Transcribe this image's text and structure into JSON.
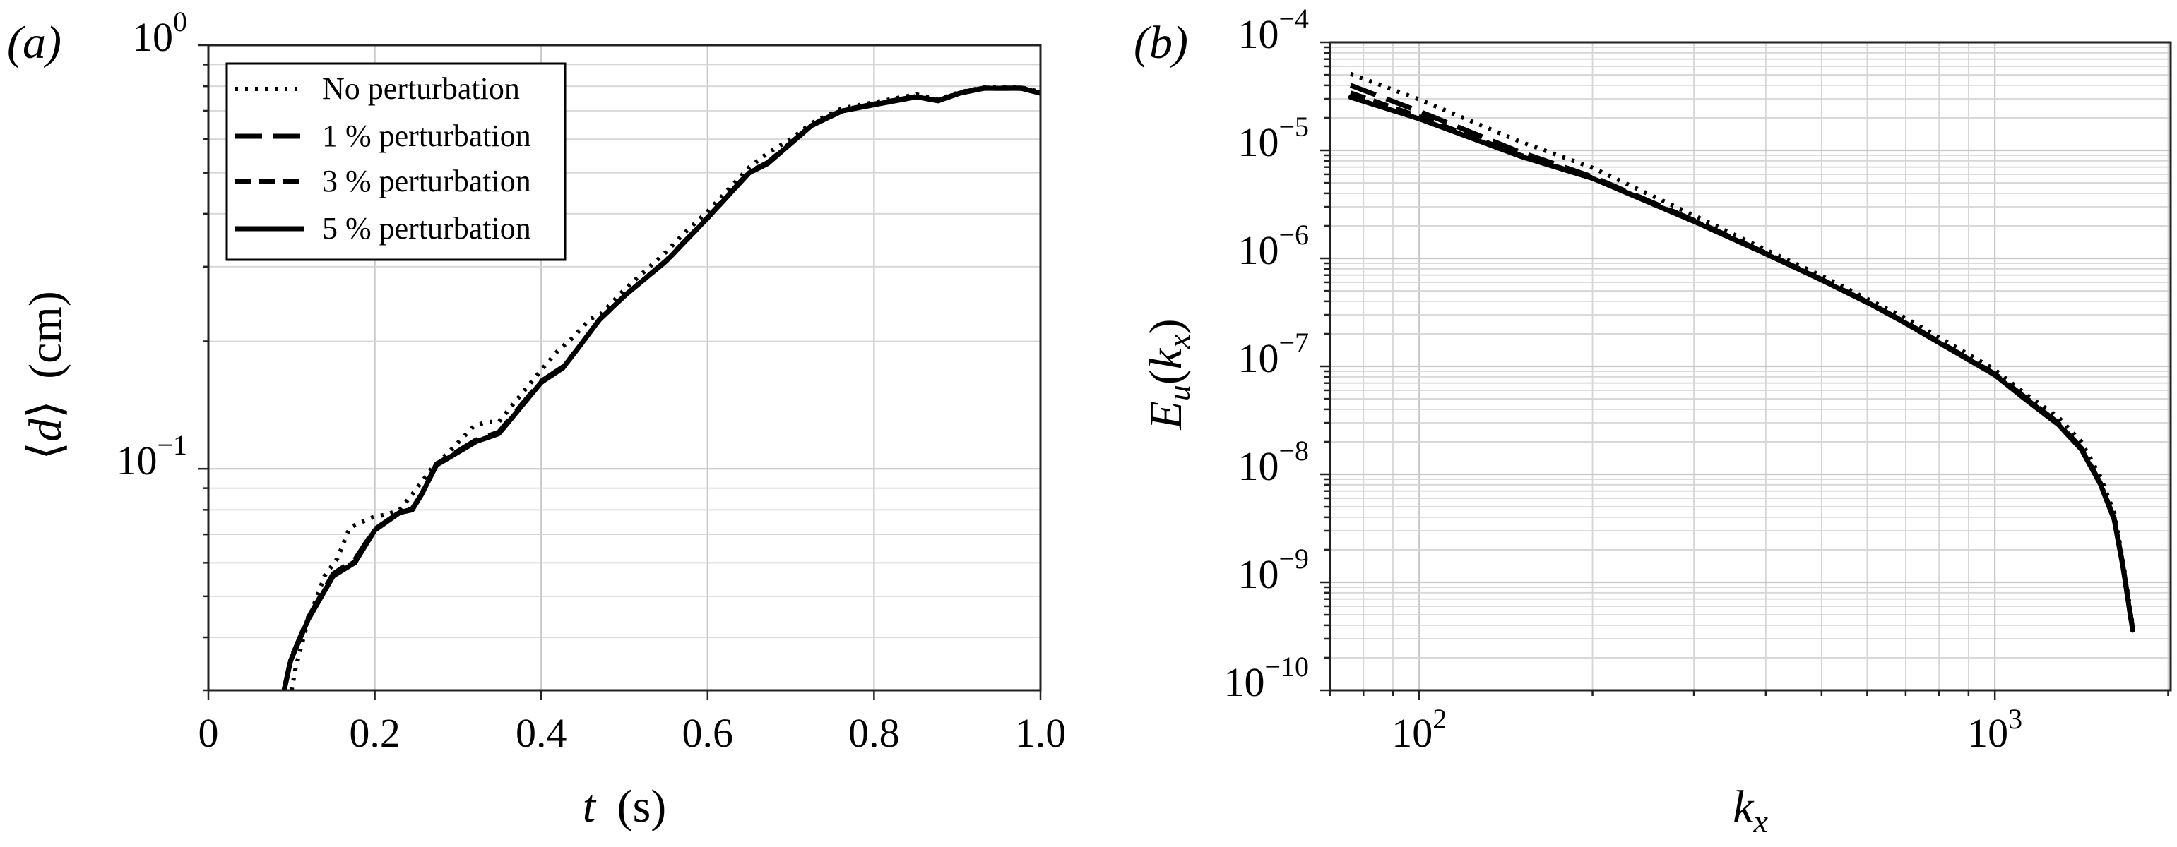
{
  "figure": {
    "panels": [
      "(a)",
      "(b)"
    ]
  },
  "chart_data": [
    {
      "id": "a",
      "type": "line",
      "panel_label": "(a)",
      "title": "",
      "xlabel": "t (s)",
      "xlabel_var": "t",
      "xlabel_unit": "(s)",
      "ylabel": "⟨d⟩ (cm)",
      "ylabel_var": "d",
      "ylabel_unit": "(cm)",
      "xscale": "linear",
      "yscale": "log",
      "xlim": [
        0,
        1.0
      ],
      "ylim": [
        0.03,
        1.0
      ],
      "xticks": [
        0,
        0.2,
        0.4,
        0.6,
        0.8,
        1.0
      ],
      "xtick_labels": [
        "0",
        "0.2",
        "0.4",
        "0.6",
        "0.8",
        "1.0"
      ],
      "yticks": [
        0.1,
        1.0
      ],
      "ytick_labels": [
        {
          "base": "10",
          "exp": "−1"
        },
        {
          "base": "10",
          "exp": "0"
        }
      ],
      "grid": true,
      "legend": {
        "position": "upper left",
        "entries": [
          "No perturbation",
          "1 % perturbation",
          "3 % perturbation",
          "5 % perturbation"
        ]
      },
      "series": [
        {
          "name": "No perturbation",
          "style": "dotted",
          "x": [
            0.1,
            0.105,
            0.12,
            0.14,
            0.155,
            0.17,
            0.185,
            0.199,
            0.215,
            0.23,
            0.245,
            0.256,
            0.27,
            0.29,
            0.319,
            0.334,
            0.349,
            0.37,
            0.4,
            0.42,
            0.438,
            0.459,
            0.472,
            0.5,
            0.55,
            0.572,
            0.6,
            0.65,
            0.672,
            0.7,
            0.725,
            0.762,
            0.803,
            0.851,
            0.877,
            0.903,
            0.932,
            0.977,
            1.0
          ],
          "y": [
            0.03,
            0.034,
            0.044,
            0.056,
            0.0614,
            0.0727,
            0.075,
            0.077,
            0.078,
            0.08,
            0.087,
            0.093,
            0.101,
            0.11,
            0.126,
            0.129,
            0.129,
            0.145,
            0.171,
            0.19,
            0.204,
            0.226,
            0.232,
            0.265,
            0.325,
            0.36,
            0.405,
            0.515,
            0.556,
            0.6,
            0.655,
            0.71,
            0.735,
            0.765,
            0.745,
            0.775,
            0.795,
            0.795,
            0.775
          ]
        },
        {
          "name": "1 % perturbation",
          "style": "dashed-long",
          "x": [
            0.091,
            0.099,
            0.12,
            0.15,
            0.176,
            0.2,
            0.23,
            0.245,
            0.256,
            0.274,
            0.322,
            0.349,
            0.4,
            0.426,
            0.442,
            0.47,
            0.502,
            0.55,
            0.599,
            0.65,
            0.672,
            0.725,
            0.762,
            0.803,
            0.851,
            0.877,
            0.903,
            0.932,
            0.977,
            1.0
          ],
          "y": [
            0.03,
            0.0355,
            0.0445,
            0.0565,
            0.061,
            0.072,
            0.079,
            0.0805,
            0.087,
            0.1025,
            0.117,
            0.122,
            0.161,
            0.174,
            0.19,
            0.225,
            0.258,
            0.31,
            0.39,
            0.502,
            0.528,
            0.648,
            0.702,
            0.728,
            0.757,
            0.74,
            0.772,
            0.792,
            0.792,
            0.772
          ]
        },
        {
          "name": "3 % perturbation",
          "style": "dashed-short",
          "x": [
            0.091,
            0.099,
            0.12,
            0.15,
            0.176,
            0.2,
            0.23,
            0.245,
            0.256,
            0.274,
            0.322,
            0.349,
            0.4,
            0.426,
            0.442,
            0.47,
            0.502,
            0.55,
            0.599,
            0.65,
            0.672,
            0.725,
            0.762,
            0.803,
            0.851,
            0.877,
            0.903,
            0.932,
            0.977,
            1.0
          ],
          "y": [
            0.03,
            0.0353,
            0.0442,
            0.056,
            0.0603,
            0.0718,
            0.0789,
            0.0802,
            0.0869,
            0.102,
            0.116,
            0.121,
            0.16,
            0.173,
            0.19,
            0.225,
            0.258,
            0.309,
            0.389,
            0.5,
            0.526,
            0.646,
            0.7,
            0.726,
            0.756,
            0.739,
            0.77,
            0.791,
            0.791,
            0.771
          ]
        },
        {
          "name": "5 % perturbation",
          "style": "solid",
          "x": [
            0.091,
            0.099,
            0.12,
            0.15,
            0.176,
            0.2,
            0.23,
            0.245,
            0.256,
            0.274,
            0.322,
            0.349,
            0.4,
            0.426,
            0.442,
            0.47,
            0.502,
            0.55,
            0.599,
            0.65,
            0.672,
            0.725,
            0.762,
            0.803,
            0.851,
            0.877,
            0.903,
            0.932,
            0.977,
            1.0
          ],
          "y": [
            0.03,
            0.0353,
            0.0441,
            0.0558,
            0.06,
            0.0716,
            0.0788,
            0.08,
            0.0868,
            0.102,
            0.116,
            0.121,
            0.16,
            0.173,
            0.19,
            0.225,
            0.258,
            0.309,
            0.389,
            0.5,
            0.525,
            0.646,
            0.7,
            0.725,
            0.755,
            0.739,
            0.77,
            0.791,
            0.791,
            0.77
          ]
        }
      ]
    },
    {
      "id": "b",
      "type": "line",
      "panel_label": "(b)",
      "title": "",
      "xlabel": "k_x",
      "ylabel": "E_u(k_x)",
      "xscale": "log",
      "yscale": "log",
      "xlim": [
        70,
        2020
      ],
      "ylim": [
        1e-10,
        0.0001
      ],
      "xticks": [
        100,
        1000
      ],
      "xtick_labels": [
        {
          "base": "10",
          "exp": "2"
        },
        {
          "base": "10",
          "exp": "3"
        }
      ],
      "yticks": [
        1e-10,
        1e-09,
        1e-08,
        1e-07,
        1e-06,
        1e-05,
        0.0001
      ],
      "ytick_labels": [
        {
          "base": "10",
          "exp": "−10"
        },
        {
          "base": "10",
          "exp": "−9"
        },
        {
          "base": "10",
          "exp": "−8"
        },
        {
          "base": "10",
          "exp": "−7"
        },
        {
          "base": "10",
          "exp": "−6"
        },
        {
          "base": "10",
          "exp": "−5"
        },
        {
          "base": "10",
          "exp": "−4"
        }
      ],
      "grid": true,
      "legend": null,
      "series": [
        {
          "name": "No perturbation",
          "style": "dotted",
          "x": [
            76,
            100,
            150,
            200,
            300,
            400,
            500,
            606,
            700,
            1000,
            1127,
            1288,
            1413,
            1525,
            1612,
            1669,
            1735
          ],
          "y": [
            5.1e-05,
            2.96e-05,
            1.2e-05,
            6.9e-06,
            2.5e-06,
            1.2e-06,
            6.9e-07,
            4.1e-07,
            2.8e-07,
            9.3e-08,
            5.6e-08,
            3.4e-08,
            2e-08,
            9.5e-09,
            4.4e-09,
            1.6e-09,
            4e-10
          ]
        },
        {
          "name": "1 % perturbation",
          "style": "dashed-long",
          "x": [
            76,
            100,
            150,
            200,
            300,
            400,
            500,
            606,
            700,
            1000,
            1127,
            1288,
            1413,
            1525,
            1612,
            1669,
            1735
          ],
          "y": [
            4e-05,
            2.3e-05,
            9.6e-06,
            5.7e-06,
            2.25e-06,
            1.12e-06,
            6.4e-07,
            3.85e-07,
            2.55e-07,
            8.5e-08,
            5.2e-08,
            3e-08,
            1.75e-08,
            8.3e-09,
            3.9e-09,
            1.45e-09,
            3.7e-10
          ]
        },
        {
          "name": "3 % perturbation",
          "style": "dashed-short",
          "x": [
            76,
            100,
            150,
            200,
            300,
            400,
            500,
            606,
            700,
            1000,
            1127,
            1288,
            1413,
            1525,
            1612,
            1669,
            1735
          ],
          "y": [
            3.4e-05,
            2.05e-05,
            9e-06,
            5.55e-06,
            2.22e-06,
            1.11e-06,
            6.35e-07,
            3.82e-07,
            2.52e-07,
            8.4e-08,
            5.1e-08,
            2.95e-08,
            1.72e-08,
            8.2e-09,
            3.85e-09,
            1.42e-09,
            3.6e-10
          ]
        },
        {
          "name": "5 % perturbation",
          "style": "solid",
          "x": [
            76,
            100,
            150,
            200,
            300,
            400,
            500,
            606,
            700,
            1000,
            1127,
            1288,
            1413,
            1525,
            1612,
            1669,
            1735
          ],
          "y": [
            3.1e-05,
            1.96e-05,
            8.8e-06,
            5.5e-06,
            2.2e-06,
            1.1e-06,
            6.3e-07,
            3.8e-07,
            2.5e-07,
            8.3e-08,
            5e-08,
            2.9e-08,
            1.7e-08,
            8.1e-09,
            3.8e-09,
            1.4e-09,
            3.6e-10
          ]
        }
      ]
    }
  ]
}
